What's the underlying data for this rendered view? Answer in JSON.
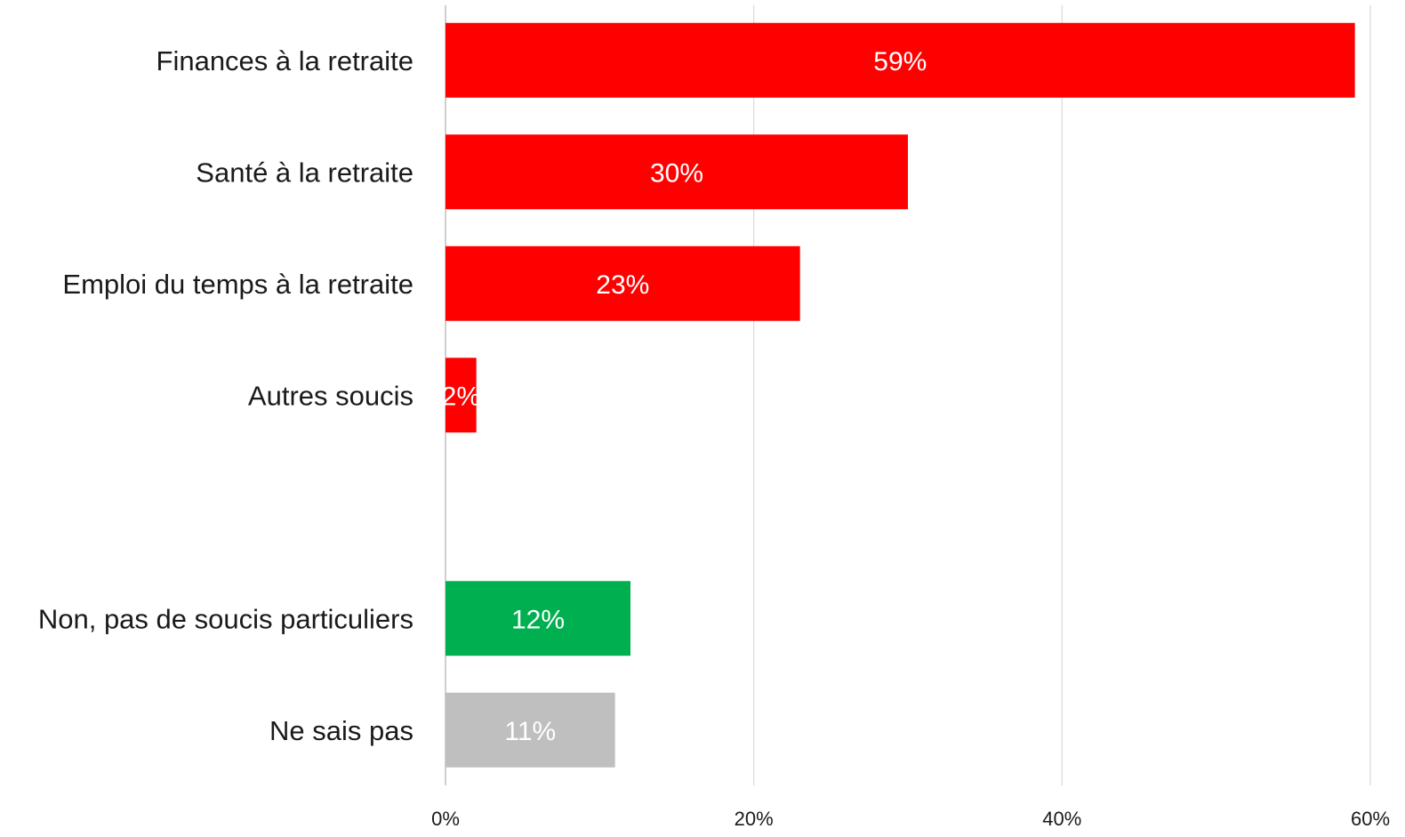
{
  "chart_data": {
    "type": "bar",
    "orientation": "horizontal",
    "title": "",
    "xlabel": "",
    "ylabel": "",
    "categories": [
      "Finances à la retraite",
      "Santé à la retraite",
      "Emploi du temps à la retraite",
      "Autres soucis",
      "",
      "Non, pas de soucis particuliers",
      "Ne sais pas"
    ],
    "values": [
      59,
      30,
      23,
      2,
      null,
      12,
      11
    ],
    "value_labels": [
      "59%",
      "30%",
      "23%",
      "2%",
      "",
      "12%",
      "11%"
    ],
    "bar_colors": [
      "#ff0000",
      "#ff0000",
      "#ff0000",
      "#ff0000",
      "",
      "#00b050",
      "#bfbfbf"
    ],
    "xlim": [
      0,
      60
    ],
    "xticks": [
      0,
      20,
      40,
      60
    ],
    "xtick_labels": [
      "0%",
      "20%",
      "40%",
      "60%"
    ],
    "grid": true,
    "grid_color": "#d9d9d9",
    "legend": "none"
  }
}
